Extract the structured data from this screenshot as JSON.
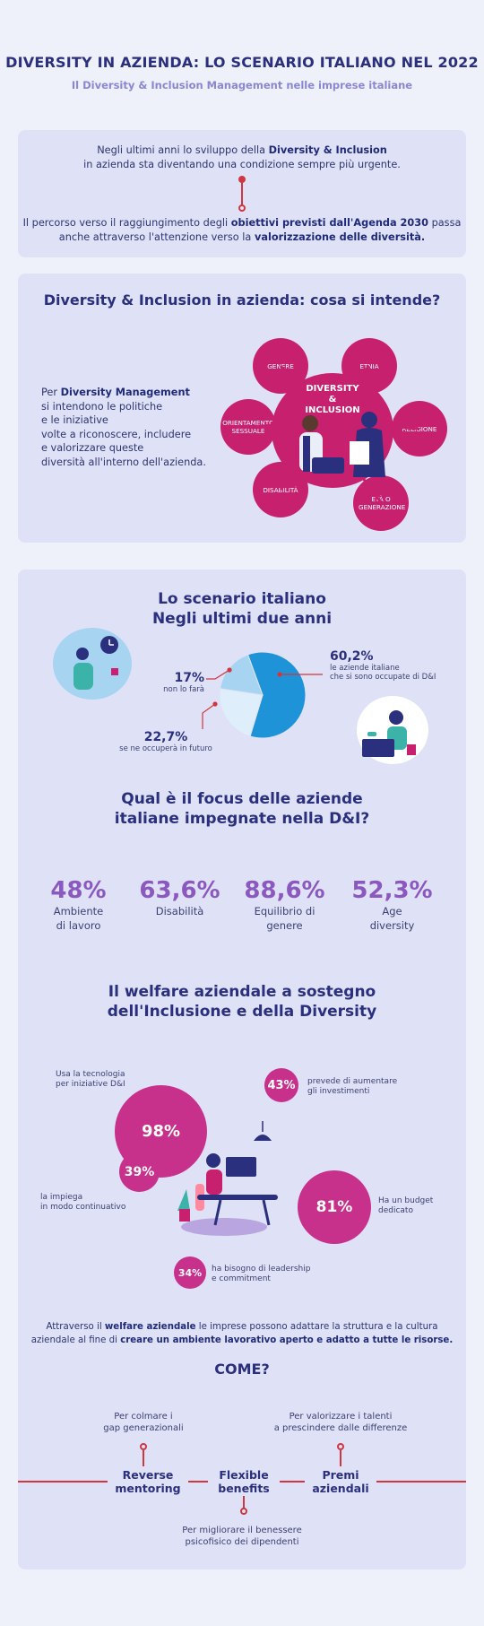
{
  "header": {
    "title": "DIVERSITY IN AZIENDA: LO SCENARIO ITALIANO NEL 2022",
    "subtitle": "Il Diversity & Inclusion Management nelle imprese italiane"
  },
  "intro": {
    "p1_pre": "Negli ultimi anni lo sviluppo della ",
    "p1_bold": "Diversity & Inclusion",
    "p1_post": "in azienda sta diventando una condizione sempre più urgente.",
    "p2_pre": "Il percorso verso il raggiungimento degli ",
    "p2_bold1": "obiettivi previsti dall'Agenda 2030",
    "p2_mid": " passa",
    "p2_line2_pre": "anche attraverso l'attenzione verso la ",
    "p2_bold2": "valorizzazione delle diversità."
  },
  "di_section": {
    "heading": "Diversity & Inclusion in azienda: cosa si intende?",
    "text_pre": "Per ",
    "text_bold": "Diversity Management",
    "text_l2": "si intendono le politiche",
    "text_l3": "e le iniziative",
    "text_l4": "volte a riconoscere, includere",
    "text_l5": "e valorizzare queste",
    "text_l6": "diversità all'interno dell'azienda.",
    "center_l1": "DIVERSITY",
    "center_l2": "&",
    "center_l3": "INCLUSION",
    "bubbles": {
      "genere": "GENERE",
      "etnia": "ETNIA",
      "orientamento": "ORIENTAMENTO SESSUALE",
      "religione": "RELIGIONE",
      "disabilita": "DISABILITÀ",
      "eta": "ETÀ O GENERAZIONE"
    }
  },
  "scenario": {
    "heading_l1": "Lo scenario italiano",
    "heading_l2": "Negli ultimi due anni",
    "pie": [
      {
        "label": "le aziende italiane che si sono occupate di D&I",
        "value": "60,2%",
        "num": 60.2,
        "color": "#1f93d8"
      },
      {
        "label": "se ne occuperà in futuro",
        "value": "22,7%",
        "num": 22.7,
        "color": "#dfeefb"
      },
      {
        "label": "non lo farà",
        "value": "17%",
        "num": 17,
        "color": "#a7d4f0"
      }
    ],
    "a_value": "60,2%",
    "a_l1": "le aziende italiane",
    "a_l2": "che si sono occupate di D&I",
    "b_value": "17%",
    "b_l1": "non lo farà",
    "c_value": "22,7%",
    "c_l1": "se ne occuperà in futuro"
  },
  "focus": {
    "heading_l1": "Qual è il focus delle aziende",
    "heading_l2": "italiane impegnate nella D&I?",
    "items": [
      {
        "value": "48%",
        "l1": "Ambiente",
        "l2": "di lavoro"
      },
      {
        "value": "63,6%",
        "l1": "Disabilità",
        "l2": ""
      },
      {
        "value": "88,6%",
        "l1": "Equilibrio di",
        "l2": "genere"
      },
      {
        "value": "52,3%",
        "l1": "Age",
        "l2": "diversity"
      }
    ]
  },
  "welfare": {
    "heading_l1": "Il welfare aziendale a sostegno",
    "heading_l2": "dell'Inclusione e della Diversity",
    "b98": "98%",
    "b98_l1": "Usa la tecnologia",
    "b98_l2": "per iniziative D&I",
    "b43": "43%",
    "b43_l1": "prevede di aumentare",
    "b43_l2": "gli investimenti",
    "b39": "39%",
    "b39_l1": "la impiega",
    "b39_l2": "in modo continuativo",
    "b81": "81%",
    "b81_l1": "Ha un budget",
    "b81_l2": "dedicato",
    "b34": "34%",
    "b34_l1": "ha bisogno di leadership",
    "b34_l2": "e commitment",
    "para_pre": "Attraverso il ",
    "para_b1": "welfare aziendale",
    "para_mid": " le imprese possono adattare la struttura e la cultura",
    "para_l2_pre": "aziendale al fine di ",
    "para_b2": "creare un ambiente lavorativo aperto e adatto a tutte le risorse."
  },
  "come": {
    "heading": "COME?",
    "top_left_l1": "Per colmare i",
    "top_left_l2": "gap generazionali",
    "top_right_l1": "Per valorizzare i talenti",
    "top_right_l2": "a prescindere dalle differenze",
    "k1_l1": "Reverse",
    "k1_l2": "mentoring",
    "k2_l1": "Flexible",
    "k2_l2": "benefits",
    "k3_l1": "Premi",
    "k3_l2": "aziendali",
    "bottom_l1": "Per migliorare il benessere",
    "bottom_l2": "psicofisico dei dipendenti"
  },
  "colors": {
    "navy": "#2a2f7e",
    "magenta": "#c7206e",
    "purple": "#8b58c0",
    "red": "#d0363f",
    "blue": "#1f93d8"
  }
}
